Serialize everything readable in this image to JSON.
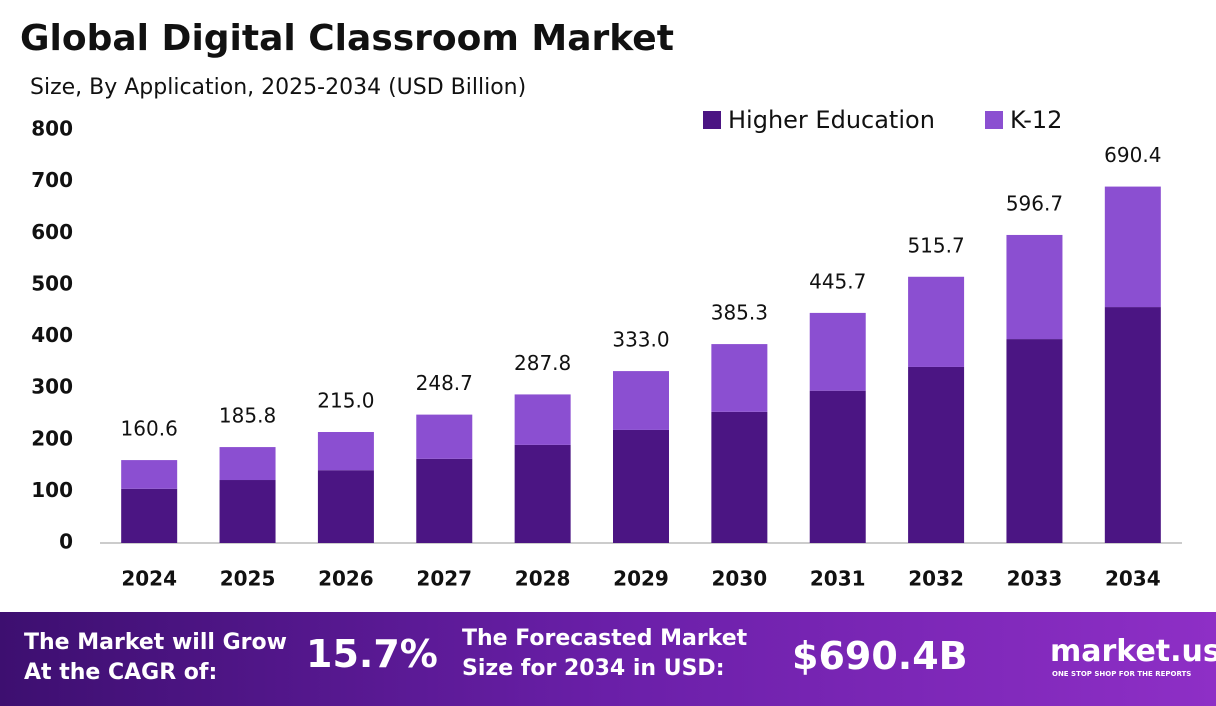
{
  "chart_data": {
    "type": "stacked-bar",
    "title": "Global Digital Classroom Market",
    "subtitle": "Size, By Application, 2025-2034 (USD Billion)",
    "categories": [
      "2024",
      "2025",
      "2026",
      "2027",
      "2028",
      "2029",
      "2030",
      "2031",
      "2032",
      "2033",
      "2034"
    ],
    "series": [
      {
        "name": "Higher Education",
        "color": "#4b1583",
        "values": [
          105,
          122,
          141,
          163,
          190,
          219,
          254,
          295,
          341,
          395,
          457
        ]
      },
      {
        "name": "K-12",
        "color": "#8b4fd1",
        "values": [
          55.6,
          63.8,
          74,
          85.7,
          97.8,
          114,
          131.3,
          150.7,
          174.7,
          201.7,
          233.4
        ]
      }
    ],
    "totals": [
      160.6,
      185.8,
      215,
      248.7,
      287.8,
      333,
      385.3,
      445.7,
      515.7,
      596.7,
      690.4
    ],
    "total_labels": [
      "160.6",
      "185.8",
      "215.0",
      "248.7",
      "287.8",
      "333.0",
      "385.3",
      "445.7",
      "515.7",
      "596.7",
      "690.4"
    ],
    "ylim": [
      0,
      800
    ],
    "yticks": [
      0,
      100,
      200,
      300,
      400,
      500,
      600,
      700,
      800
    ],
    "grid": false,
    "legend": "top-right"
  },
  "footer": {
    "cagr_line1": "The Market will Grow",
    "cagr_line2": "At the CAGR of:",
    "cagr_value": "15.7%",
    "forecast_line1": "The Forecasted Market",
    "forecast_line2": "Size for 2034 in USD:",
    "forecast_value": "$690.4B",
    "logo": "market.us",
    "tagline": "ONE STOP SHOP FOR THE REPORTS"
  }
}
